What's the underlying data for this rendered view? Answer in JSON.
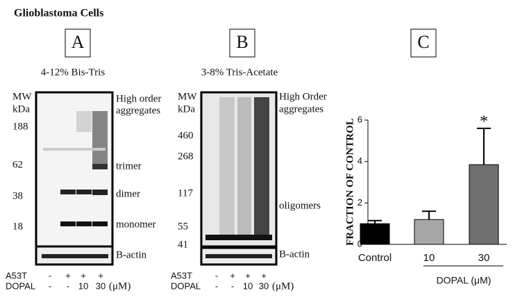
{
  "header": {
    "title": "Glioblastoma Cells"
  },
  "panels": {
    "A": {
      "letter": "A",
      "subtitle": "4-12% Bis-Tris",
      "mw": [
        "MW",
        "kDa",
        "188",
        "62",
        "38",
        "18"
      ],
      "bands": [
        "High order",
        "aggregates",
        "trimer",
        "dimer",
        "monomer",
        "B-actin"
      ],
      "rows": [
        {
          "label": "A53T",
          "lanes": [
            "-",
            "+",
            "+",
            "+"
          ]
        },
        {
          "label": "DOPAL",
          "lanes": [
            "-",
            "-",
            "10",
            "30"
          ],
          "unit": "(μM)"
        }
      ]
    },
    "B": {
      "letter": "B",
      "subtitle": "3-8% Tris-Acetate",
      "mw": [
        "MW",
        "kDa",
        "460",
        "268",
        "117",
        "55",
        "41"
      ],
      "bands": [
        "High Order",
        "aggregates",
        "oligomers",
        "B-actin"
      ],
      "rows": [
        {
          "label": "A53T",
          "lanes": [
            "-",
            "+",
            "+",
            "+"
          ]
        },
        {
          "label": "DOPAL",
          "lanes": [
            "-",
            "-",
            "10",
            "30"
          ],
          "unit": "(μM)"
        }
      ]
    },
    "C": {
      "letter": "C"
    }
  },
  "chart_data": {
    "type": "bar",
    "categories": [
      "Control",
      "10",
      "30"
    ],
    "values": [
      1.0,
      1.2,
      3.85
    ],
    "errors": [
      0.15,
      0.4,
      1.75
    ],
    "colors": [
      "#000000",
      "#a6a6a6",
      "#707070"
    ],
    "ylim": [
      0,
      6
    ],
    "yticks": [
      0,
      2,
      4,
      6
    ],
    "y_label": "FRACTION OF CONTROL",
    "x_label": "DOPAL (μM)",
    "annotation": "*"
  }
}
